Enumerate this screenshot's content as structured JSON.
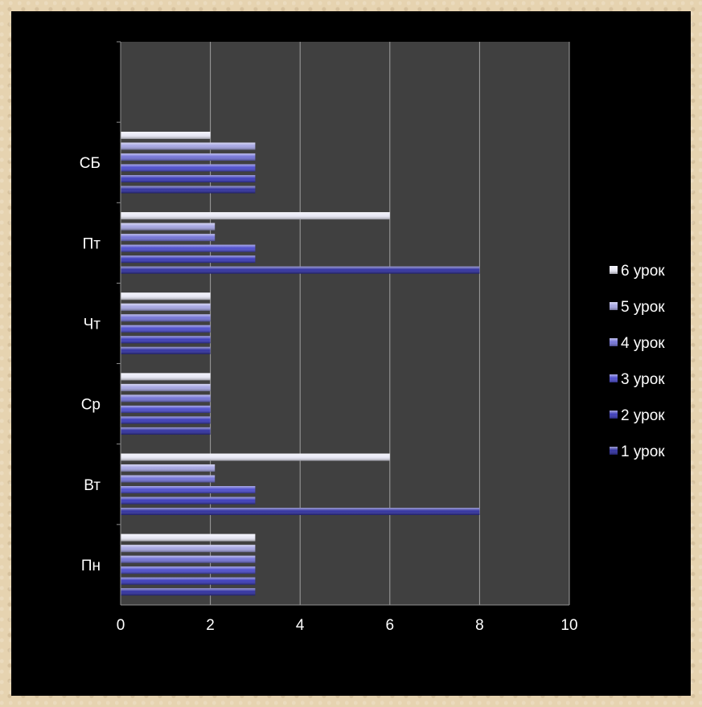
{
  "chart_data": {
    "type": "bar",
    "orientation": "horizontal",
    "categories": [
      "Пн",
      "Вт",
      "Ср",
      "Чт",
      "Пт",
      "СБ"
    ],
    "series": [
      {
        "name": "1 урок",
        "values": [
          3,
          8,
          2,
          2,
          8,
          3
        ],
        "color": "#2a2a9c"
      },
      {
        "name": "2 урок",
        "values": [
          3,
          3,
          2,
          2,
          3,
          3
        ],
        "color": "#3535b8"
      },
      {
        "name": "3 урок",
        "values": [
          3,
          3,
          2,
          2,
          3,
          3
        ],
        "color": "#4848cc"
      },
      {
        "name": "4 урок",
        "values": [
          3,
          2.1,
          2,
          2,
          2.1,
          3
        ],
        "color": "#7070d6"
      },
      {
        "name": "5 урок",
        "values": [
          3,
          2.1,
          2,
          2,
          2.1,
          3
        ],
        "color": "#a3a3e2"
      },
      {
        "name": "6 урок",
        "values": [
          3,
          6,
          2,
          2,
          6,
          2
        ],
        "color": "#e8e8f6"
      }
    ],
    "x_ticks": [
      "0",
      "2",
      "4",
      "6",
      "8",
      "10"
    ],
    "xlim": [
      0,
      10
    ],
    "grid": true,
    "legend_position": "right",
    "plot_background": "#404040",
    "title": "",
    "xlabel": "",
    "ylabel": ""
  }
}
